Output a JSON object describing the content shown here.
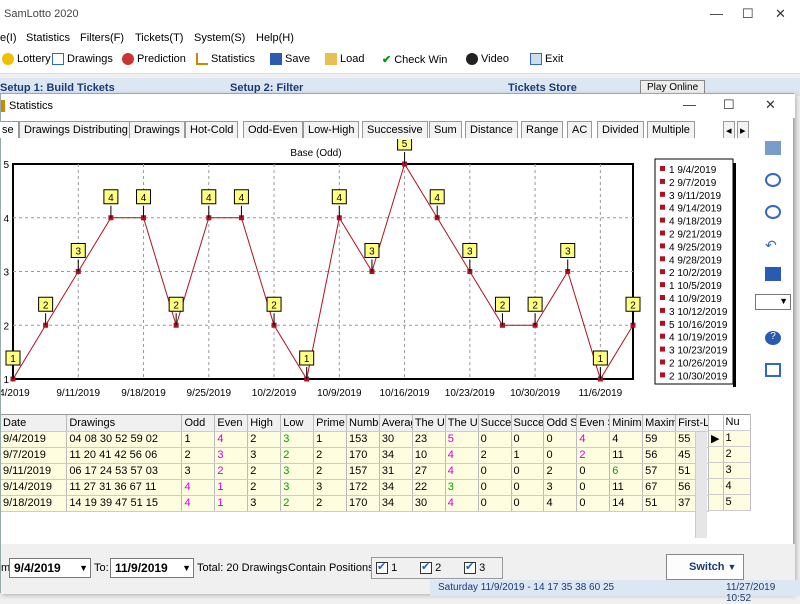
{
  "app": {
    "title": "SamLotto 2020",
    "menu": [
      "e(I)",
      "Statistics",
      "Filters(F)",
      "Tickets(T)",
      "System(S)",
      "Help(H)"
    ],
    "toolbar": [
      "Lottery",
      "Drawings",
      "Prediction",
      "Statistics",
      "Save",
      "Load",
      "Check Win",
      "Video",
      "Exit"
    ],
    "setup": [
      "Setup 1: Build Tickets",
      "Setup 2: Filter",
      "Tickets Store"
    ],
    "menu_btn": "Menu",
    "play_online": "Play Online"
  },
  "dialog": {
    "title": "Statistics",
    "tabs": [
      "se",
      "Drawings Distributing",
      "Drawings",
      "Hot-Cold",
      "Odd-Even",
      "Low-High",
      "Successive",
      "Sum",
      "Distance",
      "Range",
      "AC",
      "Divided",
      "Multiple"
    ]
  },
  "chart_data": {
    "type": "line",
    "title": "Base (Odd)",
    "x": [
      "9/4/2019",
      "9/7/2019",
      "9/11/2019",
      "9/14/2019",
      "9/18/2019",
      "9/21/2019",
      "9/25/2019",
      "9/28/2019",
      "10/2/2019",
      "10/5/2019",
      "10/9/2019",
      "10/12/2019",
      "10/16/2019",
      "10/19/2019",
      "10/23/2019",
      "10/26/2019",
      "10/30/2019",
      "11/2/2019",
      "11/6/2019",
      "11/9/2019"
    ],
    "values": [
      1,
      2,
      3,
      4,
      4,
      2,
      4,
      4,
      2,
      1,
      4,
      3,
      5,
      4,
      3,
      2,
      2,
      3,
      1,
      2
    ],
    "xticks": [
      "/4/2019",
      "9/11/2019",
      "9/18/2019",
      "9/25/2019",
      "10/2/2019",
      "10/9/2019",
      "10/16/2019",
      "10/23/2019",
      "10/30/2019",
      "11/6/2019"
    ],
    "yticks": [
      "5",
      "4",
      "3",
      "2",
      "1"
    ],
    "ylim": [
      1,
      5
    ],
    "color": "#b01020",
    "grid": true,
    "legend": [
      "1 9/4/2019",
      "2 9/7/2019",
      "3 9/11/2019",
      "4 9/14/2019",
      "4 9/18/2019",
      "2 9/21/2019",
      "4 9/25/2019",
      "4 9/28/2019",
      "2 10/2/2019",
      "1 10/5/2019",
      "4 10/9/2019",
      "3 10/12/2019",
      "5 10/16/2019",
      "4 10/19/2019",
      "3 10/23/2019",
      "2 10/26/2019",
      "2 10/30/2019"
    ]
  },
  "grid": {
    "headers": [
      "Date",
      "Drawings",
      "Odd",
      "Even",
      "High",
      "Low",
      "Prime",
      "Numbe",
      "Averag",
      "The U",
      "The U",
      "Succe",
      "Succe",
      "Odd S",
      "Even S",
      "Minimu",
      "Maxim",
      "First-L"
    ],
    "rows": [
      [
        "9/4/2019",
        "04 08 30 52 59 02",
        "1",
        "4",
        "2",
        "3",
        "1",
        "153",
        "30",
        "23",
        "5",
        "0",
        "0",
        "0",
        "4",
        "4",
        "59",
        "55"
      ],
      [
        "9/7/2019",
        "11 20 41 42 56 06",
        "2",
        "3",
        "3",
        "2",
        "2",
        "170",
        "34",
        "10",
        "4",
        "2",
        "1",
        "0",
        "2",
        "11",
        "56",
        "45"
      ],
      [
        "9/11/2019",
        "06 17 24 53 57 03",
        "3",
        "2",
        "2",
        "3",
        "2",
        "157",
        "31",
        "27",
        "4",
        "0",
        "0",
        "2",
        "0",
        "6",
        "57",
        "51"
      ],
      [
        "9/14/2019",
        "11 27 31 36 67 11",
        "4",
        "1",
        "2",
        "3",
        "3",
        "172",
        "34",
        "22",
        "3",
        "0",
        "0",
        "3",
        "0",
        "11",
        "67",
        "56"
      ],
      [
        "9/18/2019",
        "14 19 39 47 51 15",
        "4",
        "1",
        "3",
        "2",
        "2",
        "170",
        "34",
        "30",
        "4",
        "0",
        "0",
        "4",
        "0",
        "14",
        "51",
        "37"
      ]
    ],
    "side_header": "Nu",
    "side_values": [
      "1",
      "2",
      "3",
      "4",
      "5"
    ]
  },
  "bottom": {
    "from_label": "m:",
    "from": "9/4/2019",
    "to_label": "To:",
    "to": "11/9/2019",
    "total": "Total: 20 Drawings",
    "contain": "Contain Positions:",
    "pos": [
      "1",
      "2",
      "3"
    ],
    "switch": "Switch"
  },
  "status": {
    "left": "Saturday 11/9/2019 - 14 17 35 38 60 25",
    "right": "11/27/2019 10:52"
  }
}
